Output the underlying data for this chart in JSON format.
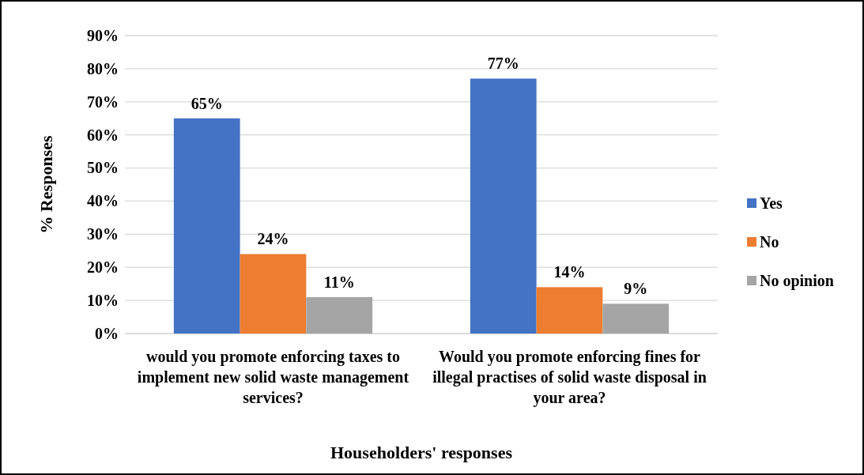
{
  "chart_data": {
    "type": "bar",
    "xlabel": "Householders' responses",
    "ylabel": "% Responses",
    "categories": [
      "would you promote enforcing taxes to implement new solid waste management services?",
      "Would you promote enforcing fines for illegal practises of solid waste disposal in your area?"
    ],
    "series": [
      {
        "name": "Yes",
        "color": "#4472c4",
        "values": [
          65,
          77
        ],
        "value_labels": [
          "65%",
          "77%"
        ]
      },
      {
        "name": "No",
        "color": "#ed7d31",
        "values": [
          24,
          14
        ],
        "value_labels": [
          "24%",
          "14%"
        ]
      },
      {
        "name": "No opinion",
        "color": "#a5a5a5",
        "values": [
          11,
          9
        ],
        "value_labels": [
          "11%",
          "9%"
        ]
      }
    ],
    "ylim": [
      0,
      90
    ],
    "yticks": [
      {
        "value": 0,
        "label": "0%"
      },
      {
        "value": 10,
        "label": "10%"
      },
      {
        "value": 20,
        "label": "20%"
      },
      {
        "value": 30,
        "label": "30%"
      },
      {
        "value": 40,
        "label": "40%"
      },
      {
        "value": 50,
        "label": "50%"
      },
      {
        "value": 60,
        "label": "60%"
      },
      {
        "value": 70,
        "label": "70%"
      },
      {
        "value": 80,
        "label": "80%"
      },
      {
        "value": 90,
        "label": "90%"
      }
    ],
    "grid": "y",
    "legend": "right"
  }
}
